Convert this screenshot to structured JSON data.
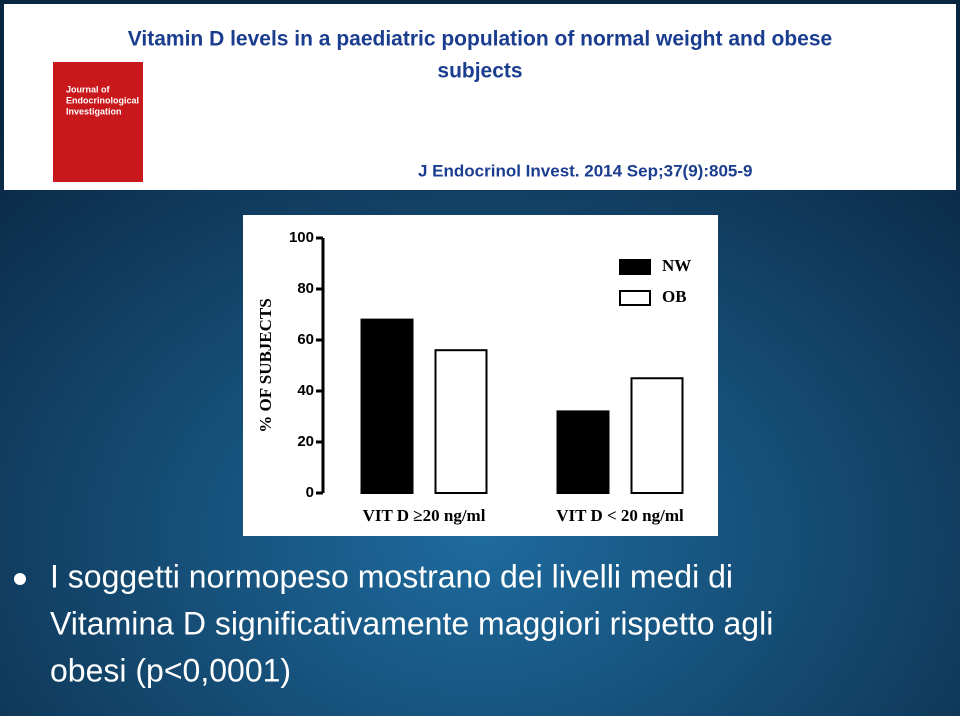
{
  "slide": {
    "title_lines": [
      "Vitamin D levels in a paediatric population of normal weight and obese",
      "subjects"
    ],
    "journal_cover": [
      "Journal of",
      "Endocrinological",
      "Investigation"
    ],
    "citation": "J Endocrinol Invest. 2014 Sep;37(9):805-9",
    "bullet_lines": [
      "I soggetti normopeso mostrano dei livelli medi di",
      "Vitamina D significativamente maggiori rispetto agli",
      "obesi (p<0,0001)"
    ]
  },
  "chart_data": {
    "type": "bar",
    "y_label": "% OF SUBJECTS",
    "categories": [
      "VIT D ≥20 ng/ml",
      "VIT D < 20 ng/ml"
    ],
    "series": [
      {
        "name": "NW",
        "color": "#000000",
        "values": [
          68,
          32
        ]
      },
      {
        "name": "OB",
        "color": "#ffffff",
        "values": [
          56,
          45
        ]
      }
    ],
    "ylim": [
      0,
      100
    ],
    "yticks": [
      0,
      20,
      40,
      60,
      80,
      100
    ],
    "legend": "top-right"
  }
}
